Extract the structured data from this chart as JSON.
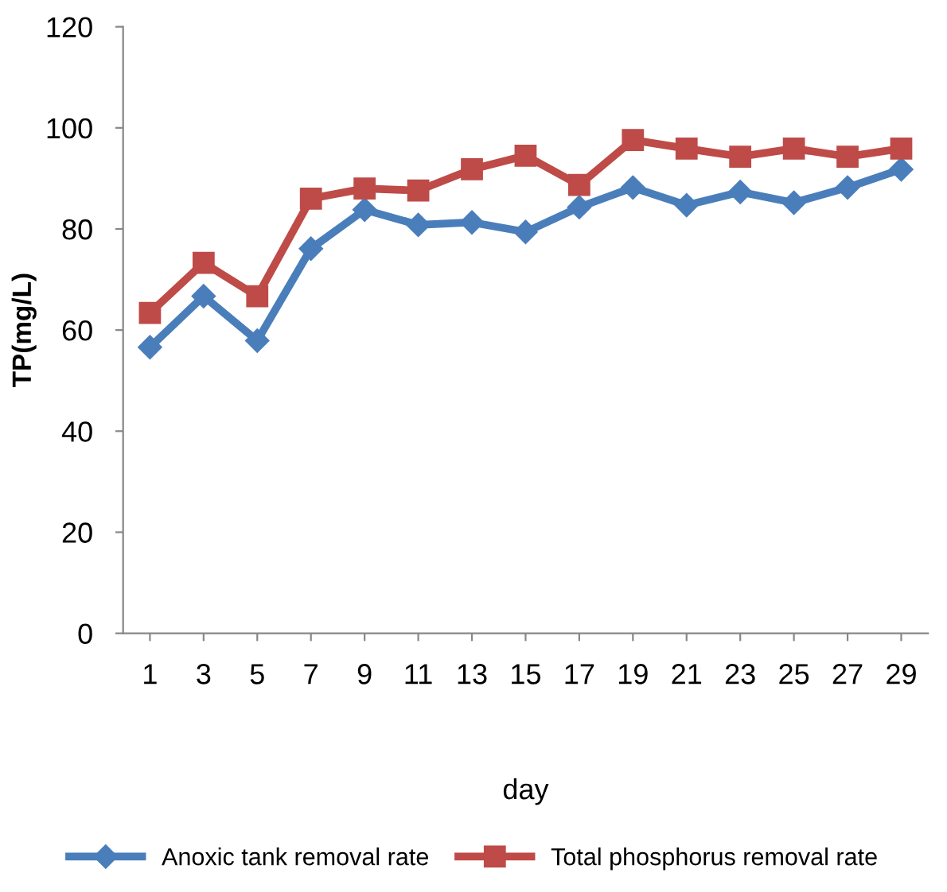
{
  "chart_data": {
    "type": "line",
    "xlabel": "day",
    "ylabel": "TP(mg/L)",
    "categories": [
      "1",
      "3",
      "5",
      "7",
      "9",
      "11",
      "13",
      "15",
      "17",
      "19",
      "21",
      "23",
      "25",
      "27",
      "29"
    ],
    "series": [
      {
        "name": "Anoxic tank removal rate",
        "color": "#4a7ebb",
        "marker": "diamond",
        "values": [
          56.6,
          66.7,
          57.9,
          76.1,
          83.8,
          80.8,
          81.3,
          79.4,
          84.3,
          88.2,
          84.7,
          87.3,
          85.2,
          88.2,
          91.8
        ]
      },
      {
        "name": "Total phosphorus removal rate",
        "color": "#be4b48",
        "marker": "square",
        "values": [
          63.4,
          73.3,
          66.7,
          86,
          88,
          87.6,
          91.8,
          94.5,
          88.7,
          97.6,
          95.9,
          94.3,
          95.9,
          94.3,
          95.9
        ]
      }
    ],
    "ylim": [
      0,
      120
    ],
    "yticks": [
      0,
      20,
      40,
      60,
      80,
      100,
      120
    ],
    "grid": false,
    "legend": "bottom",
    "line_style": "solid"
  }
}
